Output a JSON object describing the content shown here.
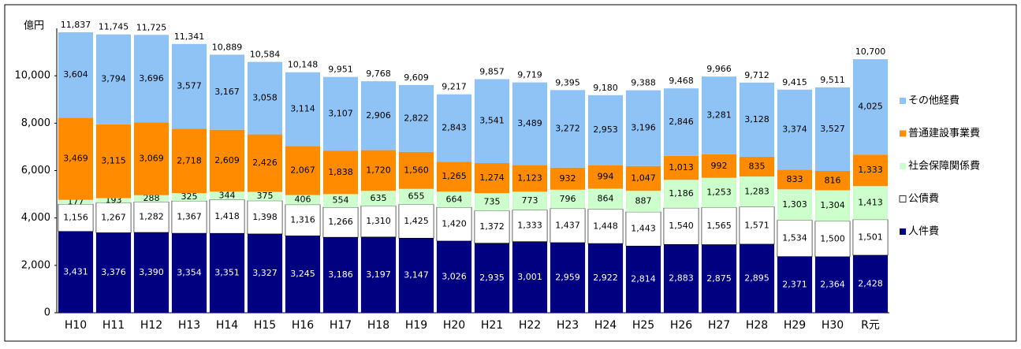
{
  "chart_data": {
    "type": "stacked_bar",
    "y_label": "億円",
    "categories": [
      "H10",
      "H11",
      "H12",
      "H13",
      "H14",
      "H15",
      "H16",
      "H17",
      "H18",
      "H19",
      "H20",
      "H21",
      "H22",
      "H23",
      "H24",
      "H25",
      "H26",
      "H27",
      "H28",
      "H29",
      "H30",
      "R元"
    ],
    "series": [
      {
        "name": "人件費",
        "color": "#000080",
        "label_color": "#ffffff",
        "values": [
          3431,
          3376,
          3390,
          3354,
          3351,
          3327,
          3245,
          3186,
          3197,
          3147,
          3026,
          2935,
          3001,
          2959,
          2922,
          2814,
          2883,
          2875,
          2895,
          2371,
          2364,
          2428
        ],
        "value_labels": [
          "3,431",
          "3,376",
          "3,390",
          "3,354",
          "3,351",
          "3,327",
          "3,245",
          "3,186",
          "3,197",
          "3,147",
          "3,026",
          "2,935",
          "3,001",
          "2,959",
          "2,922",
          "2,814",
          "2,883",
          "2,875",
          "2,895",
          "2,371",
          "2,364",
          "2,428"
        ]
      },
      {
        "name": "公債費",
        "color": "#ffffff",
        "label_color": "#000000",
        "values": [
          1156,
          1267,
          1282,
          1367,
          1418,
          1398,
          1316,
          1266,
          1310,
          1425,
          1420,
          1372,
          1333,
          1437,
          1448,
          1443,
          1540,
          1565,
          1571,
          1534,
          1500,
          1501
        ],
        "value_labels": [
          "1,156",
          "1,267",
          "1,282",
          "1,367",
          "1,418",
          "1,398",
          "1,316",
          "1,266",
          "1,310",
          "1,425",
          "1,420",
          "1,372",
          "1,333",
          "1,437",
          "1,448",
          "1,443",
          "1,540",
          "1,565",
          "1,571",
          "1,534",
          "1,500",
          "1,501"
        ]
      },
      {
        "name": "社会保障関係費",
        "color": "#ccffcc",
        "label_color": "#000000",
        "values": [
          177,
          193,
          288,
          325,
          344,
          375,
          406,
          554,
          635,
          655,
          664,
          735,
          773,
          796,
          864,
          887,
          1186,
          1253,
          1283,
          1303,
          1304,
          1413
        ],
        "value_labels": [
          "177",
          "193",
          "288",
          "325",
          "344",
          "375",
          "406",
          "554",
          "635",
          "655",
          "664",
          "735",
          "773",
          "796",
          "864",
          "887",
          "1,186",
          "1,253",
          "1,283",
          "1,303",
          "1,304",
          "1,413"
        ]
      },
      {
        "name": "普通建設事業費",
        "color": "#ff8c00",
        "label_color": "#000000",
        "values": [
          3469,
          3115,
          3069,
          2718,
          2609,
          2426,
          2067,
          1838,
          1720,
          1560,
          1265,
          1274,
          1123,
          932,
          994,
          1047,
          1013,
          992,
          835,
          833,
          816,
          1333
        ],
        "value_labels": [
          "3,469",
          "3,115",
          "3,069",
          "2,718",
          "2,609",
          "2,426",
          "2,067",
          "1,838",
          "1,720",
          "1,560",
          "1,265",
          "1,274",
          "1,123",
          "932",
          "994",
          "1,047",
          "1,013",
          "992",
          "835",
          "833",
          "816",
          "1,333"
        ]
      },
      {
        "name": "その他経費",
        "color": "#8fc3f5",
        "label_color": "#000000",
        "values": [
          3604,
          3794,
          3696,
          3577,
          3167,
          3058,
          3114,
          3107,
          2906,
          2822,
          2843,
          3541,
          3489,
          3272,
          2953,
          3196,
          2846,
          3281,
          3128,
          3374,
          3527,
          4025
        ],
        "value_labels": [
          "3,604",
          "3,794",
          "3,696",
          "3,577",
          "3,167",
          "3,058",
          "3,114",
          "3,107",
          "2,906",
          "2,822",
          "2,843",
          "3,541",
          "3,489",
          "3,272",
          "2,953",
          "3,196",
          "2,846",
          "3,281",
          "3,128",
          "3,374",
          "3,527",
          "4,025"
        ]
      }
    ],
    "totals": [
      11837,
      11745,
      11725,
      11341,
      10889,
      10584,
      10148,
      9951,
      9768,
      9609,
      9217,
      9857,
      9719,
      9395,
      9180,
      9388,
      9468,
      9966,
      9712,
      9415,
      9511,
      10700
    ],
    "total_labels": [
      "11,837",
      "11,745",
      "11,725",
      "11,341",
      "10,889",
      "10,584",
      "10,148",
      "9,951",
      "9,768",
      "9,609",
      "9,217",
      "9,857",
      "9,719",
      "9,395",
      "9,180",
      "9,388",
      "9,468",
      "9,966",
      "9,712",
      "9,415",
      "9,511",
      "10,700"
    ],
    "ylim": [
      0,
      12000
    ],
    "yticks": [
      0,
      {
        "value": 2000,
        "label": "2,000"
      },
      {
        "value": 4000,
        "label": "4,000"
      },
      {
        "value": 6000,
        "label": "6,000"
      },
      {
        "value": 8000,
        "label": "8,000"
      },
      {
        "value": 10000,
        "label": "10,000"
      }
    ],
    "legend": "right"
  }
}
